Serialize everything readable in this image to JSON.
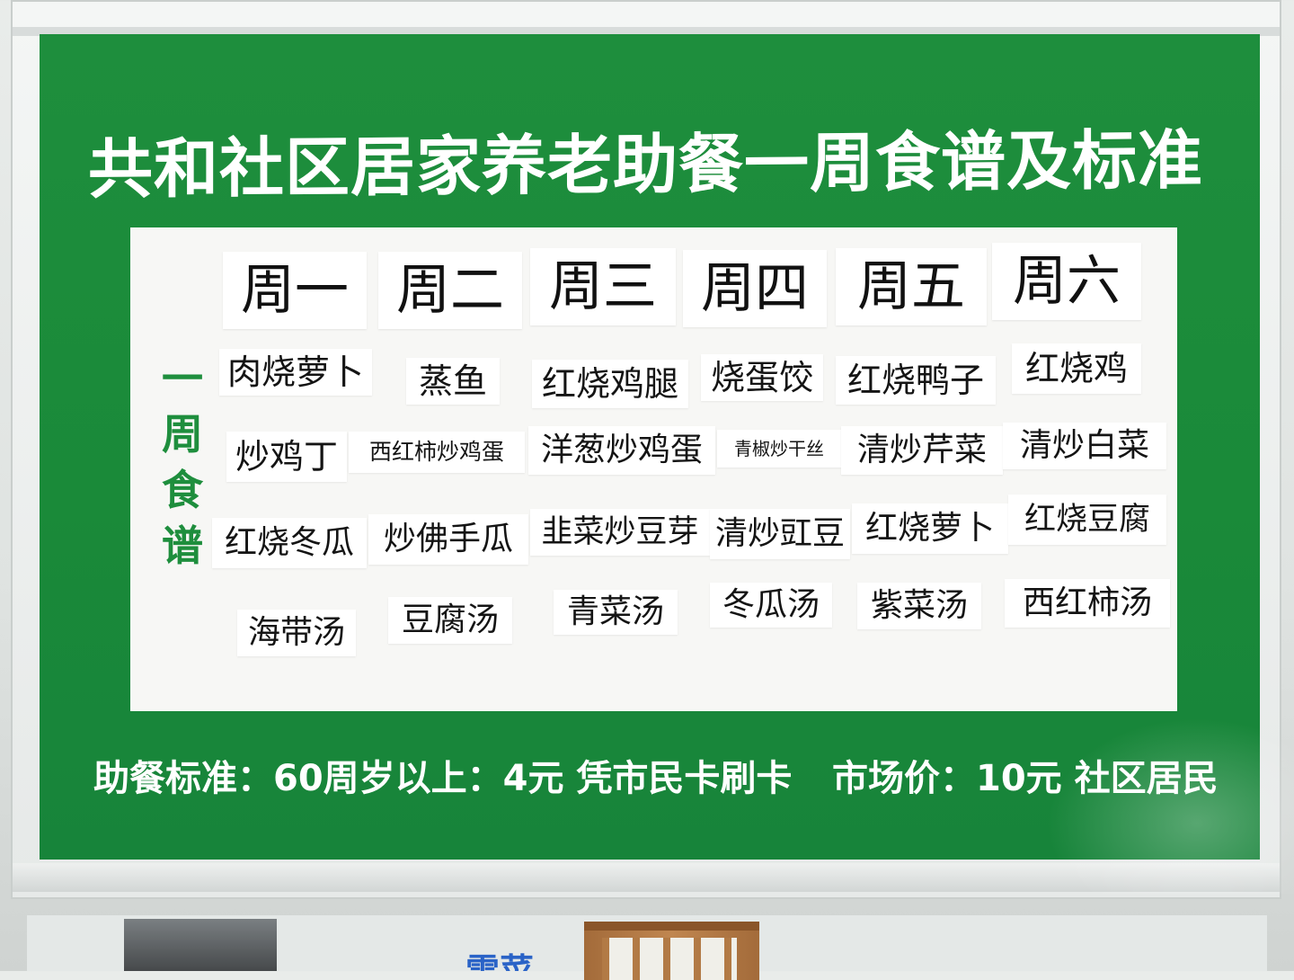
{
  "board": {
    "title": "共和社区居家养老助餐一周食谱及标准",
    "side_label": [
      "一",
      "周",
      "食",
      "谱"
    ],
    "days": [
      "周一",
      "周二",
      "周三",
      "周四",
      "周五",
      "周六"
    ],
    "menu": [
      [
        "肉烧萝卜",
        "蒸鱼",
        "红烧鸡腿",
        "烧蛋饺",
        "红烧鸭子",
        "红烧鸡"
      ],
      [
        "炒鸡丁",
        "西红柿炒鸡蛋",
        "洋葱炒鸡蛋",
        "青椒炒干丝",
        "清炒芹菜",
        "清炒白菜"
      ],
      [
        "红烧冬瓜",
        "炒佛手瓜",
        "韭菜炒豆芽",
        "清炒豇豆",
        "红烧萝卜",
        "红烧豆腐"
      ],
      [
        "海带汤",
        "豆腐汤",
        "青菜汤",
        "冬瓜汤",
        "紫菜汤",
        "西红柿汤"
      ]
    ],
    "footer_left": "助餐标准：60周岁以上：4元  凭市民卡刷卡",
    "footer_right": "市场价：10元  社区居民"
  },
  "background": {
    "blue_sign_text": "雪菜"
  },
  "colors": {
    "board_green": "#1a8a39",
    "paper": "#f7f7f5",
    "label_green": "#1e8e3d"
  }
}
